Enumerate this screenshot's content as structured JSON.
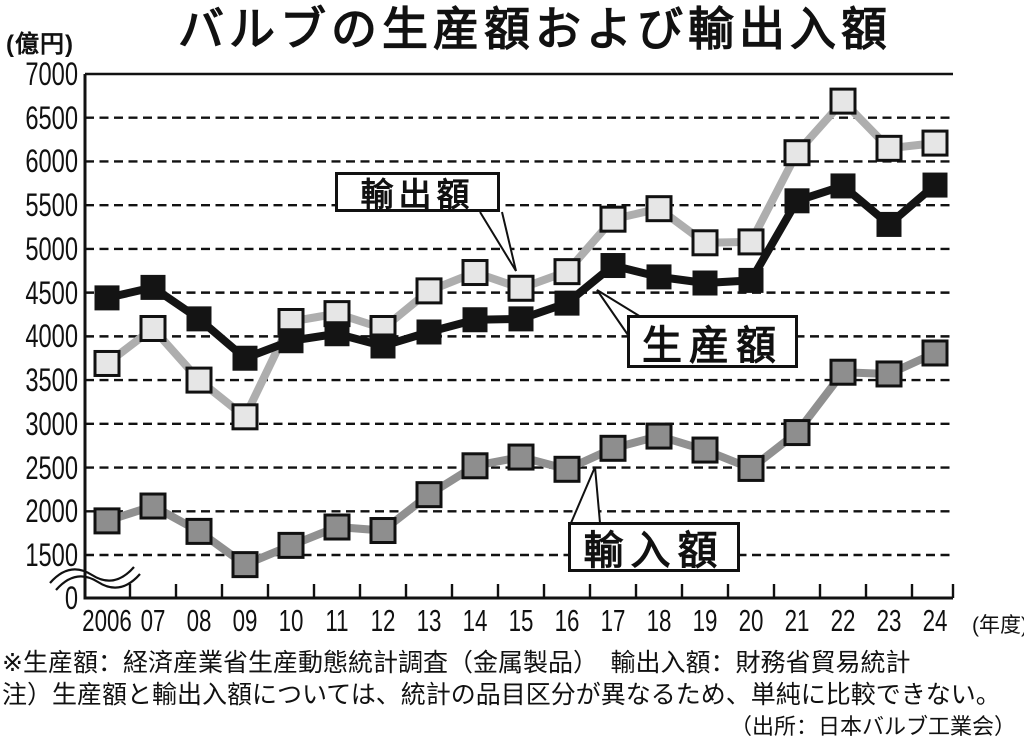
{
  "header": {
    "unit_label": "(億円)",
    "title": "バルブの生産額および輸出入額"
  },
  "x_axis": {
    "suffix": "(年度)"
  },
  "footnotes": {
    "sources": "※生産額：経済産業省生産動態統計調査（金属製品）　輸出入額：財務省貿易統計",
    "note": "注）生産額と輸出入額については、統計の品目区分が異なるため、単純に比較できない。",
    "credit": "（出所：日本バルブ工業会）"
  },
  "chart_data": {
    "type": "line",
    "title": "バルブの生産額および輸出入額",
    "unit": "億円",
    "categories": [
      "2006",
      "07",
      "08",
      "09",
      "10",
      "11",
      "12",
      "13",
      "14",
      "15",
      "16",
      "17",
      "18",
      "19",
      "20",
      "21",
      "22",
      "23",
      "24"
    ],
    "yticks": [
      0,
      1500,
      2000,
      2500,
      3000,
      3500,
      4000,
      4500,
      5000,
      5500,
      6000,
      6500,
      7000
    ],
    "ylim": [
      0,
      7000
    ],
    "axis_break_above_zero": true,
    "grid": "dashed-horizontal",
    "legend_position": "inline-callout-boxes",
    "series": [
      {
        "key": "export",
        "name": "輸出額",
        "values": [
          3690,
          4090,
          3500,
          3080,
          4170,
          4260,
          4090,
          4520,
          4730,
          4550,
          4740,
          5340,
          5460,
          5070,
          5080,
          6100,
          6690,
          6150,
          6210
        ],
        "line_color": "#aeaeae",
        "marker": "square",
        "marker_fill": "#e6e6e6",
        "marker_border": "#111111"
      },
      {
        "key": "production",
        "name": "生産額",
        "values": [
          4440,
          4560,
          4200,
          3750,
          3950,
          4030,
          3890,
          4050,
          4190,
          4200,
          4380,
          4810,
          4680,
          4610,
          4640,
          5550,
          5720,
          5280,
          5730
        ],
        "line_color": "#141414",
        "marker": "square",
        "marker_fill": "#141414",
        "marker_border": "#141414"
      },
      {
        "key": "import",
        "name": "輸入額",
        "values": [
          1890,
          2060,
          1770,
          1390,
          1610,
          1820,
          1780,
          2190,
          2520,
          2620,
          2480,
          2720,
          2860,
          2700,
          2490,
          2900,
          3590,
          3570,
          3810
        ],
        "line_color": "#909090",
        "marker": "square",
        "marker_fill": "#8e8e8e",
        "marker_border": "#111111"
      }
    ]
  }
}
